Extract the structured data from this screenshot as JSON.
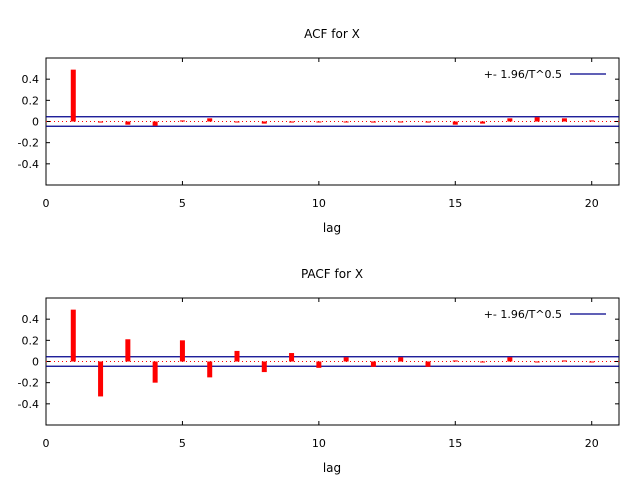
{
  "chart_data": [
    {
      "type": "bar",
      "title": "ACF for X",
      "xlabel": "lag",
      "ylabel": "",
      "xlim": [
        0,
        21
      ],
      "ylim": [
        -0.6,
        0.6
      ],
      "xticks": [
        "0",
        "5",
        "10",
        "15",
        "20"
      ],
      "yticks": [
        "0.4",
        "0.2",
        "0",
        "-0.2",
        "-0.4"
      ],
      "legend": {
        "position": "top-right",
        "entries": [
          "+- 1.96/T^0.5"
        ]
      },
      "confidence_band": 0.045,
      "bar_color": "#ff0000",
      "band_color": "#00008b",
      "lags": [
        1,
        2,
        3,
        4,
        5,
        6,
        7,
        8,
        9,
        10,
        11,
        12,
        13,
        14,
        15,
        16,
        17,
        18,
        19,
        20
      ],
      "values": [
        0.49,
        -0.01,
        -0.03,
        -0.04,
        0.01,
        0.03,
        0.0,
        -0.02,
        -0.01,
        0.0,
        0.0,
        -0.01,
        0.0,
        -0.01,
        -0.03,
        -0.02,
        0.03,
        0.04,
        0.03,
        0.01
      ]
    },
    {
      "type": "bar",
      "title": "PACF for X",
      "xlabel": "lag",
      "ylabel": "",
      "xlim": [
        0,
        21
      ],
      "ylim": [
        -0.6,
        0.6
      ],
      "xticks": [
        "0",
        "5",
        "10",
        "15",
        "20"
      ],
      "yticks": [
        "0.4",
        "0.2",
        "0",
        "-0.2",
        "-0.4"
      ],
      "legend": {
        "position": "top-right",
        "entries": [
          "+- 1.96/T^0.5"
        ]
      },
      "confidence_band": 0.045,
      "bar_color": "#ff0000",
      "band_color": "#00008b",
      "lags": [
        1,
        2,
        3,
        4,
        5,
        6,
        7,
        8,
        9,
        10,
        11,
        12,
        13,
        14,
        15,
        16,
        17,
        18,
        19,
        20
      ],
      "values": [
        0.49,
        -0.33,
        0.21,
        -0.2,
        0.2,
        -0.15,
        0.1,
        -0.1,
        0.08,
        -0.06,
        0.04,
        -0.05,
        0.04,
        -0.05,
        0.01,
        0.0,
        0.04,
        0.0,
        0.01,
        0.0
      ]
    }
  ]
}
